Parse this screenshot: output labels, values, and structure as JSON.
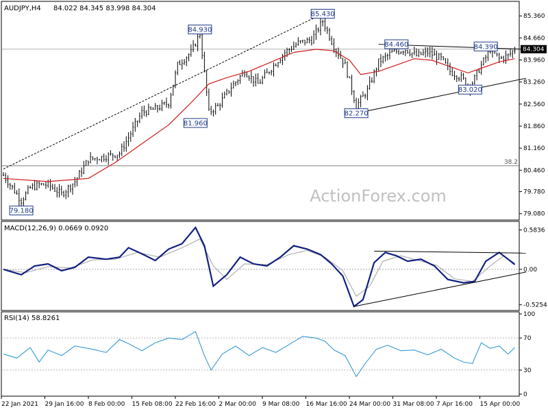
{
  "colors": {
    "candle": "#000000",
    "ma": "#d01818",
    "macd_line": "#102080",
    "macd_signal": "#a0a0a0",
    "rsi": "#1e90d0",
    "trend": "#000000",
    "label_border": "#1e3a8a",
    "label_bg": "#ffffff",
    "current_bg": "#000000",
    "current_fg": "#ffffff",
    "watermark": "#c0c0c0"
  },
  "chart_data": [
    {
      "type": "candlestick",
      "title": "AUDJPY,H4",
      "ohlc_text": "84.022 84.345 83.998 84.304",
      "watermark": "ActionForex.com",
      "current_price": 84.304,
      "ylim": [
        78.9,
        85.8
      ],
      "y_ticks": [
        79.08,
        79.78,
        80.46,
        81.16,
        81.86,
        82.56,
        83.26,
        83.96,
        84.66,
        85.36
      ],
      "x_ticks": [
        "22 Jan 2021",
        "29 Jan 16:00",
        "8 Feb 00:00",
        "15 Feb 08:00",
        "22 Feb 16:00",
        "2 Mar 00:00",
        "9 Mar 08:00",
        "16 Mar 16:00",
        "24 Mar 00:00",
        "31 Mar 08:00",
        "7 Apr 16:00",
        "15 Apr 00:00"
      ],
      "fib_label": "38.2",
      "fib_level": 80.6,
      "price_labels": [
        {
          "text": "79.180",
          "value": 79.18,
          "bar": 8
        },
        {
          "text": "84.930",
          "value": 84.93,
          "bar": 88
        },
        {
          "text": "81.960",
          "value": 81.96,
          "bar": 86
        },
        {
          "text": "85.430",
          "value": 85.43,
          "bar": 143
        },
        {
          "text": "82.270",
          "value": 82.27,
          "bar": 158
        },
        {
          "text": "84.460",
          "value": 84.46,
          "bar": 176
        },
        {
          "text": "84.390",
          "value": 84.39,
          "bar": 216
        },
        {
          "text": "83.020",
          "value": 83.02,
          "bar": 209
        }
      ],
      "anchors": [
        [
          0,
          80.3
        ],
        [
          8,
          79.5
        ],
        [
          12,
          79.9
        ],
        [
          16,
          80.0
        ],
        [
          20,
          80.0
        ],
        [
          26,
          79.7
        ],
        [
          32,
          80.1
        ],
        [
          38,
          80.8
        ],
        [
          46,
          80.9
        ],
        [
          52,
          81.0
        ],
        [
          56,
          81.5
        ],
        [
          62,
          82.3
        ],
        [
          68,
          82.4
        ],
        [
          74,
          82.6
        ],
        [
          78,
          83.8
        ],
        [
          84,
          84.2
        ],
        [
          88,
          84.8
        ],
        [
          92,
          82.3
        ],
        [
          96,
          82.5
        ],
        [
          102,
          83.1
        ],
        [
          108,
          83.6
        ],
        [
          114,
          83.2
        ],
        [
          120,
          83.7
        ],
        [
          126,
          84.2
        ],
        [
          132,
          84.5
        ],
        [
          138,
          84.6
        ],
        [
          143,
          85.2
        ],
        [
          148,
          84.4
        ],
        [
          153,
          83.8
        ],
        [
          158,
          82.5
        ],
        [
          163,
          83.0
        ],
        [
          168,
          83.9
        ],
        [
          174,
          84.2
        ],
        [
          180,
          84.3
        ],
        [
          185,
          84.1
        ],
        [
          190,
          84.2
        ],
        [
          196,
          84.0
        ],
        [
          200,
          83.6
        ],
        [
          205,
          83.4
        ],
        [
          209,
          83.1
        ],
        [
          214,
          83.8
        ],
        [
          218,
          84.3
        ],
        [
          222,
          84.0
        ],
        [
          226,
          84.1
        ],
        [
          229,
          84.3
        ]
      ],
      "ma": [
        [
          0,
          80.2
        ],
        [
          20,
          80.1
        ],
        [
          38,
          80.2
        ],
        [
          50,
          80.7
        ],
        [
          62,
          81.3
        ],
        [
          74,
          81.9
        ],
        [
          84,
          82.6
        ],
        [
          92,
          83.2
        ],
        [
          100,
          83.4
        ],
        [
          110,
          83.6
        ],
        [
          120,
          83.9
        ],
        [
          130,
          84.2
        ],
        [
          140,
          84.3
        ],
        [
          148,
          84.25
        ],
        [
          155,
          83.95
        ],
        [
          160,
          83.5
        ],
        [
          168,
          83.6
        ],
        [
          176,
          83.8
        ],
        [
          184,
          84.0
        ],
        [
          192,
          83.95
        ],
        [
          200,
          83.75
        ],
        [
          208,
          83.55
        ],
        [
          214,
          83.7
        ],
        [
          222,
          83.9
        ],
        [
          229,
          84.0
        ]
      ],
      "trendlines": [
        {
          "from": [
            0,
            80.5
          ],
          "to": [
            143,
            85.43
          ],
          "style": "dashed"
        },
        {
          "from": [
            158,
            82.27
          ],
          "to": [
            234,
            83.38
          ],
          "style": "solid"
        },
        {
          "from": [
            168,
            84.46
          ],
          "to": [
            234,
            84.3
          ],
          "style": "solid"
        }
      ]
    },
    {
      "type": "line",
      "title": "MACD(12,26,9) 0.0669 0.0920",
      "ylim": [
        -0.6,
        0.7
      ],
      "y_ticks": [
        0.5836,
        0.0,
        -0.5254
      ],
      "series": [
        {
          "name": "MACD",
          "points": [
            [
              0,
              0.0
            ],
            [
              8,
              -0.08
            ],
            [
              14,
              0.05
            ],
            [
              20,
              0.08
            ],
            [
              26,
              -0.02
            ],
            [
              32,
              0.03
            ],
            [
              38,
              0.18
            ],
            [
              46,
              0.15
            ],
            [
              52,
              0.18
            ],
            [
              56,
              0.32
            ],
            [
              62,
              0.23
            ],
            [
              68,
              0.13
            ],
            [
              74,
              0.3
            ],
            [
              80,
              0.38
            ],
            [
              86,
              0.62
            ],
            [
              90,
              0.35
            ],
            [
              94,
              -0.25
            ],
            [
              100,
              -0.08
            ],
            [
              106,
              0.18
            ],
            [
              112,
              0.08
            ],
            [
              118,
              0.05
            ],
            [
              124,
              0.18
            ],
            [
              130,
              0.35
            ],
            [
              136,
              0.3
            ],
            [
              142,
              0.22
            ],
            [
              147,
              0.08
            ],
            [
              152,
              -0.1
            ],
            [
              157,
              -0.55
            ],
            [
              161,
              -0.45
            ],
            [
              166,
              0.1
            ],
            [
              171,
              0.25
            ],
            [
              176,
              0.2
            ],
            [
              181,
              0.12
            ],
            [
              187,
              0.15
            ],
            [
              193,
              0.05
            ],
            [
              199,
              -0.15
            ],
            [
              206,
              -0.2
            ],
            [
              211,
              -0.18
            ],
            [
              216,
              0.12
            ],
            [
              222,
              0.25
            ],
            [
              226,
              0.15
            ],
            [
              229,
              0.07
            ]
          ]
        },
        {
          "name": "Signal",
          "points": [
            [
              0,
              0.0
            ],
            [
              10,
              -0.05
            ],
            [
              20,
              0.04
            ],
            [
              30,
              0.02
            ],
            [
              40,
              0.14
            ],
            [
              50,
              0.15
            ],
            [
              60,
              0.25
            ],
            [
              70,
              0.18
            ],
            [
              80,
              0.32
            ],
            [
              88,
              0.45
            ],
            [
              94,
              0.05
            ],
            [
              100,
              -0.15
            ],
            [
              108,
              0.08
            ],
            [
              118,
              0.07
            ],
            [
              128,
              0.22
            ],
            [
              136,
              0.28
            ],
            [
              144,
              0.18
            ],
            [
              152,
              -0.02
            ],
            [
              158,
              -0.4
            ],
            [
              164,
              -0.25
            ],
            [
              170,
              0.12
            ],
            [
              178,
              0.2
            ],
            [
              186,
              0.13
            ],
            [
              194,
              0.06
            ],
            [
              202,
              -0.14
            ],
            [
              210,
              -0.18
            ],
            [
              218,
              0.05
            ],
            [
              224,
              0.2
            ],
            [
              229,
              0.09
            ]
          ]
        }
      ],
      "trendlines": [
        {
          "from": [
            157,
            -0.55
          ],
          "to": [
            234,
            -0.04
          ]
        },
        {
          "from": [
            166,
            0.27
          ],
          "to": [
            234,
            0.24
          ]
        }
      ]
    },
    {
      "type": "line",
      "title": "RSI(14) 58.8261",
      "ylim": [
        0,
        100
      ],
      "y_ticks": [
        100,
        70,
        30,
        0
      ],
      "levels": [
        70,
        30
      ],
      "series": [
        {
          "name": "RSI",
          "points": [
            [
              0,
              50
            ],
            [
              6,
              45
            ],
            [
              12,
              58
            ],
            [
              16,
              40
            ],
            [
              20,
              55
            ],
            [
              26,
              48
            ],
            [
              32,
              60
            ],
            [
              40,
              56
            ],
            [
              46,
              52
            ],
            [
              52,
              68
            ],
            [
              56,
              63
            ],
            [
              62,
              54
            ],
            [
              68,
              64
            ],
            [
              74,
              70
            ],
            [
              80,
              68
            ],
            [
              86,
              78
            ],
            [
              90,
              48
            ],
            [
              93,
              30
            ],
            [
              98,
              50
            ],
            [
              104,
              60
            ],
            [
              110,
              48
            ],
            [
              116,
              58
            ],
            [
              122,
              52
            ],
            [
              128,
              62
            ],
            [
              134,
              72
            ],
            [
              140,
              70
            ],
            [
              144,
              66
            ],
            [
              148,
              55
            ],
            [
              153,
              48
            ],
            [
              158,
              22
            ],
            [
              162,
              38
            ],
            [
              167,
              56
            ],
            [
              172,
              61
            ],
            [
              178,
              54
            ],
            [
              184,
              55
            ],
            [
              190,
              49
            ],
            [
              196,
              56
            ],
            [
              202,
              45
            ],
            [
              206,
              40
            ],
            [
              210,
              38
            ],
            [
              214,
              64
            ],
            [
              218,
              57
            ],
            [
              222,
              60
            ],
            [
              226,
              50
            ],
            [
              229,
              58
            ]
          ]
        }
      ]
    }
  ]
}
